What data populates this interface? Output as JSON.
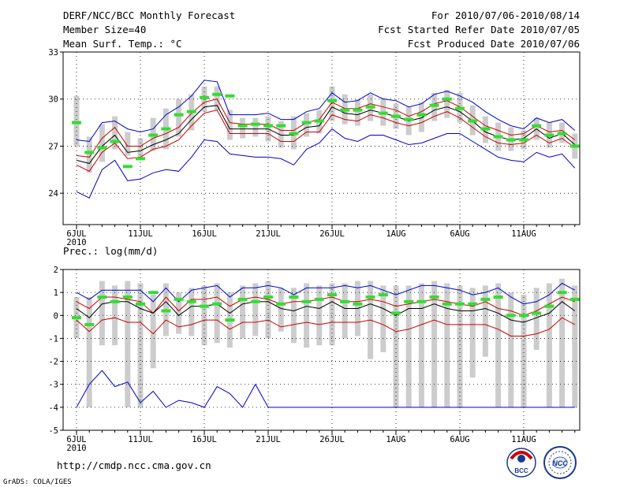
{
  "header": {
    "title": "DERF/NCC/BCC Monthly Forecast",
    "member_size": "Member Size=40",
    "variable": "Mean Surf. Temp.: °C",
    "period": "For 2010/07/06-2010/08/14",
    "started": "Fcst Started Refer Date 2010/07/05",
    "produced": "Fcst Produced Date 2010/07/06"
  },
  "footer": {
    "url": "http://cmdp.ncc.cma.gov.cn",
    "credit": "GrADS: COLA/IGES",
    "logo_bcc": "BCC",
    "logo_ncc": "NCC"
  },
  "colors": {
    "blue": "#0000cc",
    "red": "#cc0000",
    "black": "#000000",
    "green": "#33dd33",
    "gray": "#cccccc"
  },
  "chart_data": [
    {
      "type": "line",
      "title": "Mean Surf. Temp.: °C",
      "ylim": [
        22,
        33
      ],
      "yticks": [
        "24",
        "27",
        "30",
        "33"
      ],
      "xticks": [
        {
          "day": 0,
          "label": "6JUL"
        },
        {
          "day": 5,
          "label": "11JUL"
        },
        {
          "day": 10,
          "label": "16JUL"
        },
        {
          "day": 15,
          "label": "21JUL"
        },
        {
          "day": 20,
          "label": "26JUL"
        },
        {
          "day": 25,
          "label": "1AUG"
        },
        {
          "day": 30,
          "label": "6AUG"
        },
        {
          "day": 35,
          "label": "11AUG"
        }
      ],
      "year_label": "2010",
      "series": [
        {
          "name": "max",
          "color": "blue",
          "values": [
            27.4,
            27.3,
            28.5,
            28.6,
            28.1,
            27.9,
            28.1,
            29.0,
            29.5,
            30.2,
            31.2,
            31.1,
            29.0,
            29.0,
            29.0,
            29.1,
            28.7,
            28.7,
            29.2,
            29.4,
            30.4,
            29.8,
            29.9,
            30.4,
            30.0,
            29.9,
            29.5,
            29.7,
            30.3,
            30.5,
            30.2,
            29.8,
            29.2,
            28.7,
            28.3,
            28.1,
            28.8,
            28.5,
            28.7,
            28.0
          ]
        },
        {
          "name": "upper",
          "color": "red",
          "values": [
            26.4,
            26.3,
            27.5,
            28.2,
            27.0,
            27.0,
            27.5,
            27.8,
            28.2,
            29.1,
            29.8,
            30.0,
            28.5,
            28.4,
            28.4,
            28.4,
            28.0,
            28.0,
            28.5,
            28.7,
            29.8,
            29.4,
            29.4,
            29.7,
            29.5,
            29.3,
            28.9,
            29.2,
            29.7,
            29.9,
            29.5,
            28.9,
            28.3,
            28.0,
            27.7,
            27.8,
            28.3,
            27.9,
            28.0,
            27.4
          ]
        },
        {
          "name": "mean",
          "color": "black",
          "values": [
            26.1,
            25.9,
            27.0,
            27.7,
            26.6,
            26.7,
            27.1,
            27.4,
            27.8,
            28.7,
            29.5,
            29.6,
            28.1,
            28.1,
            28.1,
            28.1,
            27.7,
            27.7,
            28.2,
            28.3,
            29.5,
            29.1,
            29.0,
            29.3,
            29.1,
            28.9,
            28.6,
            28.8,
            29.3,
            29.5,
            29.2,
            28.6,
            27.9,
            27.6,
            27.4,
            27.5,
            28.1,
            27.5,
            27.8,
            27.1
          ]
        },
        {
          "name": "lower",
          "color": "red",
          "values": [
            25.8,
            25.4,
            26.6,
            27.2,
            26.2,
            26.3,
            26.8,
            27.0,
            27.4,
            28.3,
            29.1,
            29.3,
            27.8,
            27.8,
            27.8,
            27.8,
            27.3,
            27.3,
            27.9,
            27.9,
            29.0,
            28.7,
            28.6,
            29.0,
            28.8,
            28.5,
            28.3,
            28.5,
            28.9,
            29.2,
            28.8,
            28.2,
            27.6,
            27.2,
            27.1,
            27.2,
            27.7,
            27.2,
            27.5,
            26.9
          ]
        },
        {
          "name": "min",
          "color": "blue",
          "values": [
            24.1,
            23.7,
            25.5,
            26.1,
            24.8,
            24.9,
            25.3,
            25.5,
            25.4,
            26.3,
            27.4,
            27.3,
            26.5,
            26.4,
            26.3,
            26.3,
            26.2,
            25.8,
            26.8,
            27.2,
            28.1,
            27.5,
            27.3,
            27.7,
            27.7,
            27.4,
            27.1,
            27.2,
            27.5,
            27.8,
            27.8,
            27.3,
            26.8,
            26.3,
            26.1,
            26.0,
            26.6,
            26.3,
            26.5,
            25.6
          ]
        },
        {
          "name": "observed",
          "color": "green",
          "marker": "dash",
          "values": [
            28.5,
            26.6,
            26.9,
            27.3,
            25.7,
            26.2,
            27.7,
            28.1,
            29.0,
            29.2,
            30.1,
            30.3,
            30.2,
            28.3,
            28.4,
            28.3,
            28.3,
            27.8,
            28.5,
            28.6,
            29.9,
            29.3,
            29.3,
            29.5,
            29.1,
            28.9,
            28.7,
            29.0,
            29.6,
            30.0,
            29.4,
            28.6,
            28.1,
            27.6,
            27.4,
            27.4,
            28.3,
            27.7,
            27.8,
            27.0
          ]
        },
        {
          "name": "spread",
          "color": "gray",
          "marker": "bar",
          "low": [
            27.0,
            25.3,
            26.0,
            26.8,
            26.4,
            26.3,
            26.7,
            26.8,
            27.6,
            28.0,
            29.2,
            29.3,
            27.4,
            27.5,
            27.6,
            27.3,
            26.9,
            26.8,
            27.6,
            27.8,
            28.6,
            28.4,
            28.3,
            28.6,
            28.3,
            28.1,
            27.7,
            27.9,
            28.6,
            28.8,
            28.5,
            27.7,
            27.2,
            26.7,
            26.7,
            26.8,
            27.4,
            26.9,
            27.2,
            26.2
          ],
          "high": [
            30.2,
            27.6,
            28.4,
            28.9,
            27.9,
            27.5,
            28.8,
            29.4,
            30.0,
            30.3,
            30.8,
            30.8,
            29.3,
            28.8,
            28.8,
            28.9,
            28.6,
            28.9,
            29.1,
            29.3,
            30.8,
            30.3,
            30.0,
            30.3,
            30.1,
            29.7,
            29.5,
            29.8,
            30.4,
            30.6,
            30.4,
            29.6,
            28.9,
            28.5,
            28.2,
            28.0,
            28.8,
            28.5,
            28.5,
            27.8
          ]
        }
      ]
    },
    {
      "type": "line",
      "title": "Prec.: log(mm/d)",
      "ylim": [
        -5,
        2
      ],
      "yticks": [
        "-5",
        "-4",
        "-3",
        "-2",
        "-1",
        "0",
        "1",
        "2"
      ],
      "xticks": [
        {
          "day": 0,
          "label": "6JUL"
        },
        {
          "day": 5,
          "label": "11JUL"
        },
        {
          "day": 10,
          "label": "16JUL"
        },
        {
          "day": 15,
          "label": "21JUL"
        },
        {
          "day": 20,
          "label": "26JUL"
        },
        {
          "day": 25,
          "label": "1AUG"
        },
        {
          "day": 30,
          "label": "6AUG"
        },
        {
          "day": 35,
          "label": "11AUG"
        }
      ],
      "year_label": "2010",
      "series": [
        {
          "name": "max",
          "color": "blue",
          "values": [
            1.0,
            0.7,
            1.1,
            1.1,
            1.1,
            1.1,
            0.6,
            1.2,
            0.6,
            1.1,
            1.2,
            1.3,
            0.8,
            1.2,
            1.2,
            1.3,
            1.2,
            0.9,
            1.2,
            1.2,
            1.2,
            1.3,
            1.2,
            1.3,
            1.1,
            0.9,
            1.1,
            1.3,
            1.3,
            1.2,
            1.1,
            0.9,
            1.0,
            1.2,
            0.8,
            0.5,
            0.6,
            0.9,
            1.4,
            1.1
          ]
        },
        {
          "name": "upper",
          "color": "red",
          "values": [
            0.6,
            0.3,
            0.8,
            0.8,
            0.7,
            0.6,
            0.1,
            0.8,
            0.2,
            0.7,
            0.7,
            0.8,
            0.4,
            0.7,
            0.8,
            0.7,
            0.5,
            0.6,
            0.6,
            0.7,
            0.8,
            0.6,
            0.6,
            0.7,
            0.6,
            0.4,
            0.5,
            0.6,
            0.7,
            0.6,
            0.5,
            0.4,
            0.6,
            0.3,
            0.2,
            0.0,
            0.2,
            0.5,
            0.8,
            0.6
          ]
        },
        {
          "name": "mean",
          "color": "black",
          "values": [
            0.3,
            -0.1,
            0.5,
            0.6,
            0.6,
            0.3,
            0.1,
            0.6,
            0.0,
            0.4,
            0.4,
            0.5,
            0.1,
            0.5,
            0.6,
            0.6,
            0.3,
            0.2,
            0.4,
            0.3,
            0.6,
            0.3,
            0.3,
            0.5,
            0.3,
            0.0,
            0.3,
            0.3,
            0.5,
            0.3,
            0.2,
            0.2,
            0.3,
            0.1,
            -0.2,
            -0.3,
            -0.1,
            0.1,
            0.6,
            0.2
          ]
        },
        {
          "name": "lower",
          "color": "red",
          "values": [
            -0.2,
            -0.7,
            -0.2,
            -0.1,
            -0.3,
            -0.3,
            -0.8,
            -0.2,
            -0.5,
            -0.4,
            -0.2,
            -0.2,
            -0.6,
            -0.3,
            -0.3,
            -0.2,
            -0.5,
            -0.4,
            -0.3,
            -0.4,
            -0.3,
            -0.3,
            -0.3,
            -0.2,
            -0.4,
            -0.7,
            -0.6,
            -0.4,
            -0.2,
            -0.4,
            -0.4,
            -0.4,
            -0.4,
            -0.6,
            -0.9,
            -0.9,
            -0.8,
            -0.6,
            -0.1,
            -0.4
          ]
        },
        {
          "name": "min",
          "color": "blue",
          "values": [
            -4.0,
            -3.0,
            -2.4,
            -3.1,
            -2.9,
            -3.8,
            -3.3,
            -4.0,
            -3.7,
            -3.8,
            -4.0,
            -3.1,
            -3.4,
            -4.0,
            -3.0,
            -4.0,
            -4.0,
            -4.0,
            -4.0,
            -4.0,
            -4.0,
            -4.0,
            -4.0,
            -4.0,
            -4.0,
            -4.0,
            -4.0,
            -4.0,
            -4.0,
            -4.0,
            -4.0,
            -4.0,
            -4.0,
            -4.0,
            -4.0,
            -4.0,
            -4.0,
            -4.0,
            -4.0,
            -4.0
          ]
        },
        {
          "name": "observed",
          "color": "green",
          "marker": "dash",
          "values": [
            -0.1,
            -0.4,
            0.8,
            0.6,
            0.8,
            0.5,
            1.0,
            0.2,
            0.7,
            0.6,
            0.4,
            0.5,
            -0.2,
            0.7,
            0.6,
            0.8,
            0.5,
            0.8,
            0.6,
            0.7,
            0.9,
            0.6,
            0.5,
            0.8,
            0.9,
            0.1,
            0.6,
            0.6,
            0.8,
            0.5,
            0.5,
            0.5,
            0.7,
            0.8,
            0.0,
            0.0,
            0.1,
            0.4,
            1.0,
            0.7
          ]
        },
        {
          "name": "spread",
          "color": "gray",
          "marker": "bar",
          "low": [
            -1.0,
            -4.0,
            -1.3,
            -1.3,
            -4.0,
            -4.0,
            -2.3,
            -0.9,
            -0.8,
            -0.9,
            -1.3,
            -1.2,
            -1.4,
            -1.0,
            -0.9,
            -1.0,
            -0.7,
            -1.2,
            -1.4,
            -1.3,
            -1.3,
            -1.0,
            -0.9,
            -1.9,
            -1.6,
            -4.0,
            -4.0,
            -4.0,
            -4.0,
            -4.0,
            -4.0,
            -2.7,
            -1.8,
            -4.0,
            -4.0,
            -4.0,
            -1.5,
            -4.0,
            -4.0,
            -4.0
          ],
          "high": [
            0.8,
            0.8,
            1.5,
            1.3,
            1.5,
            1.4,
            0.9,
            1.4,
            1.0,
            1.2,
            1.3,
            1.4,
            1.0,
            1.3,
            1.4,
            1.5,
            1.2,
            1.2,
            1.4,
            1.3,
            1.4,
            1.4,
            1.5,
            1.5,
            1.3,
            1.3,
            1.3,
            1.4,
            1.5,
            1.4,
            1.3,
            1.2,
            1.3,
            1.4,
            1.0,
            0.9,
            1.2,
            1.4,
            1.6,
            1.3
          ]
        }
      ]
    }
  ]
}
